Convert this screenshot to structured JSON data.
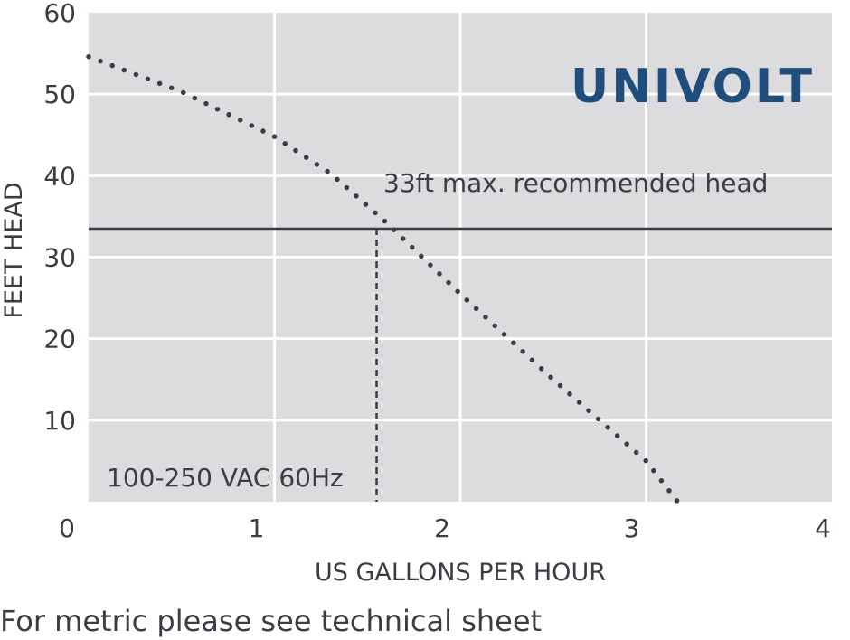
{
  "footnote": "For metric please see technical sheet",
  "logo": {
    "text": "UNIVOLT",
    "color": "#1f4e7c"
  },
  "colors": {
    "plot_bg": "#dcdcde",
    "grid": "#ffffff",
    "curve": "#3a3d44",
    "ref_line": "#3a3d44",
    "text": "#3a3d44"
  },
  "chart_data": {
    "type": "line",
    "xlabel": "US GALLONS PER HOUR",
    "ylabel": "FEET HEAD",
    "xlim": [
      0,
      4
    ],
    "ylim": [
      0,
      60
    ],
    "x_ticks": [
      0,
      1,
      2,
      3,
      4
    ],
    "y_ticks": [
      10,
      20,
      30,
      40,
      50,
      60
    ],
    "grid": true,
    "series": [
      {
        "style": "dotted",
        "x": [
          0,
          0.5,
          1.0,
          1.3,
          1.6,
          2.0,
          2.5,
          3.0,
          3.17
        ],
        "y": [
          54.6,
          50.3,
          44.8,
          40.3,
          34.3,
          25.5,
          15.0,
          5.0,
          0
        ]
      }
    ],
    "reference_lines": [
      {
        "orientation": "horizontal",
        "value": 33.5,
        "style": "solid",
        "label": "33ft max. recommended head"
      },
      {
        "orientation": "vertical",
        "value": 1.55,
        "style": "dashed"
      }
    ],
    "annotations": [
      {
        "text": "100-250 VAC 60Hz"
      }
    ]
  }
}
